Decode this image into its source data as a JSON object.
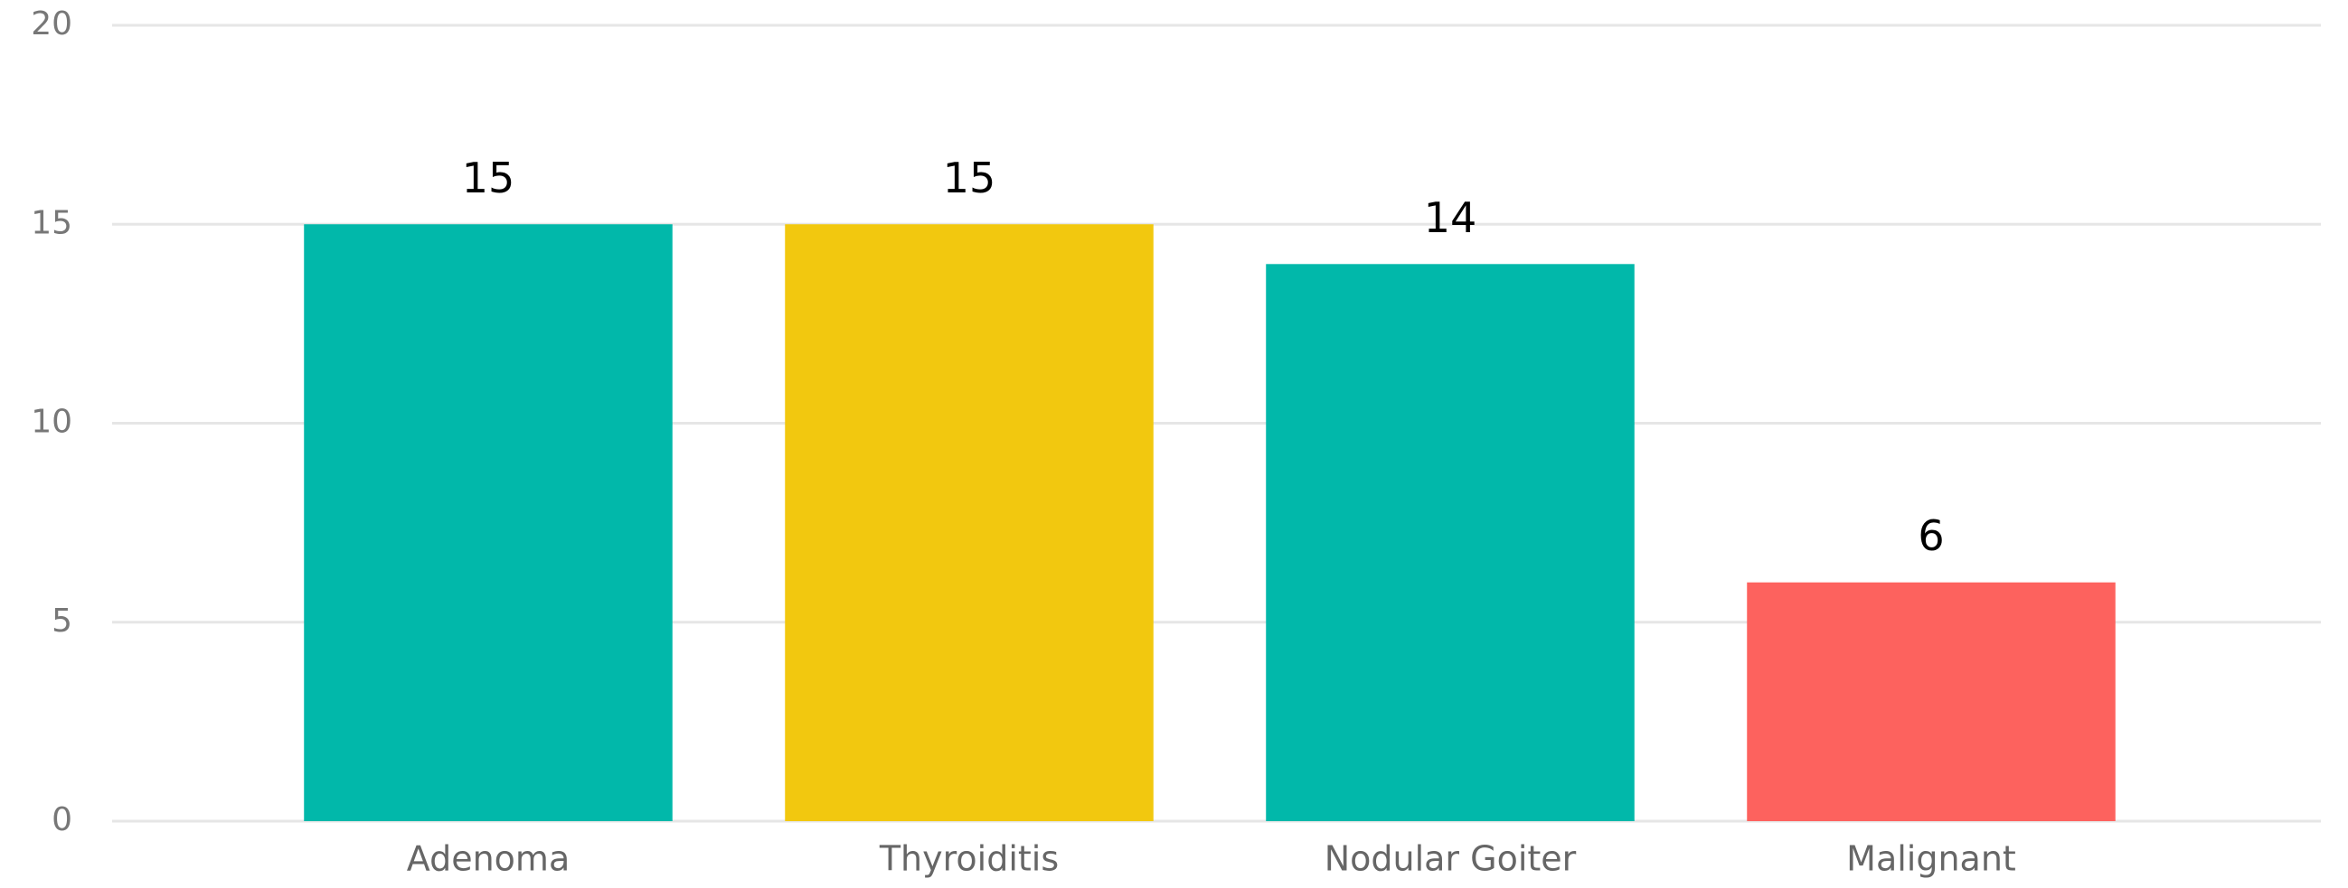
{
  "chart_data": {
    "type": "bar",
    "categories": [
      "Adenoma",
      "Thyroiditis",
      "Nodular Goiter",
      "Malignant"
    ],
    "values": [
      15,
      15,
      14,
      6
    ],
    "colors": [
      "#01b8aa",
      "#f2c80f",
      "#01b8aa",
      "#fd625e"
    ],
    "ylim": [
      0,
      20
    ],
    "yticks": [
      0,
      5,
      10,
      15,
      20
    ],
    "grid": true
  }
}
